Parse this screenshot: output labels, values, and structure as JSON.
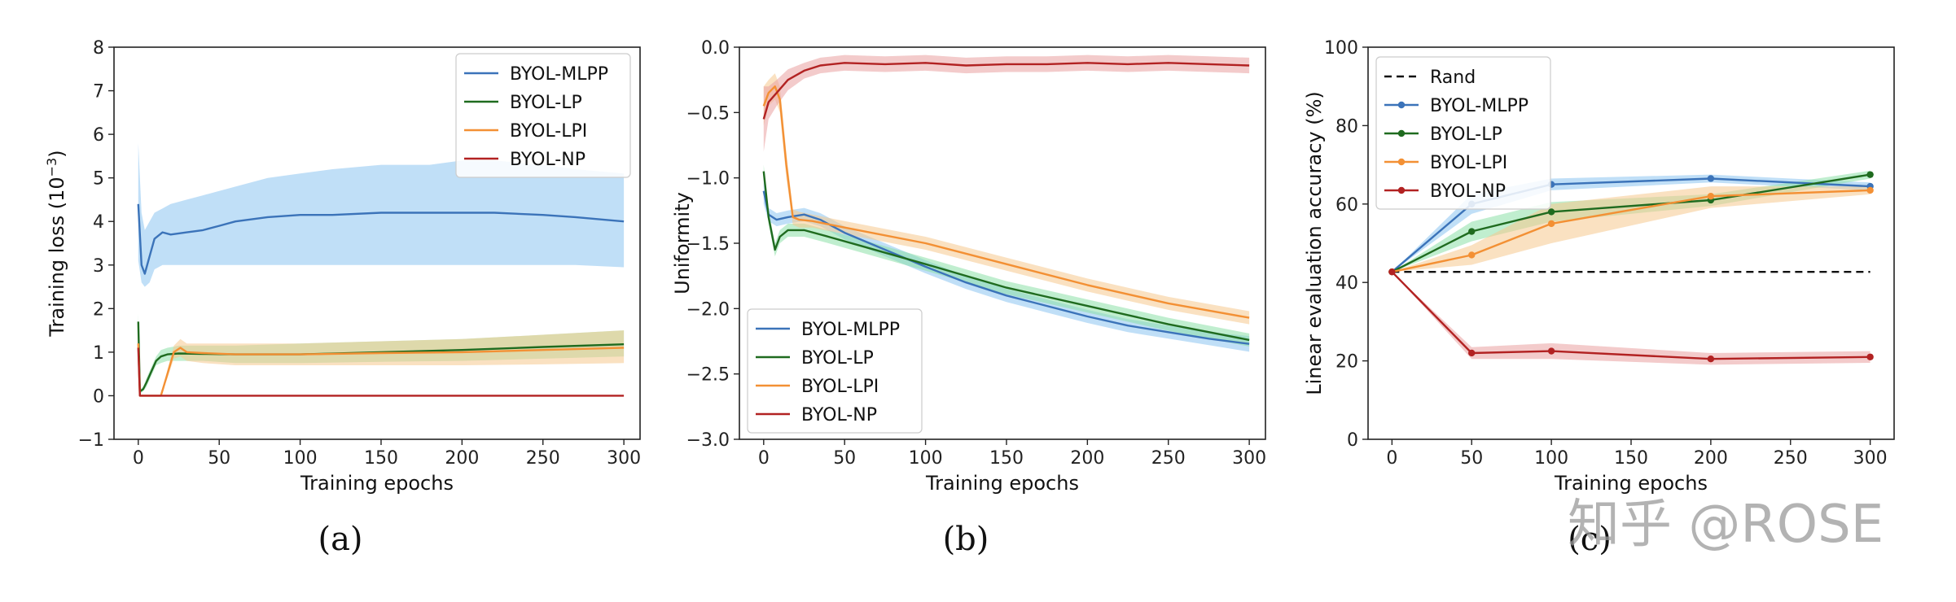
{
  "colors": {
    "mlpp": "#3b73b9",
    "lp": "#1f6b1f",
    "lpi": "#f39034",
    "np": "#b22222",
    "rand": "#111111",
    "band_mlpp": "#8cc4f0",
    "band_lp": "#8ce0a8",
    "band_lpi": "#f5c98e",
    "band_np": "#e9a0a0"
  },
  "captions": [
    "(a)",
    "(b)",
    "(c)"
  ],
  "watermark": "知乎 @ROSE",
  "chart_data": [
    {
      "id": "a",
      "type": "line",
      "caption": "(a)",
      "xlabel": "Training epochs",
      "ylabel_parts": [
        "Training loss (10",
        "−3",
        ")"
      ],
      "xlim": [
        -15,
        310
      ],
      "ylim": [
        -1,
        8
      ],
      "xticks": [
        0,
        50,
        100,
        150,
        200,
        250,
        300
      ],
      "yticks": [
        -1,
        0,
        1,
        2,
        3,
        4,
        5,
        6,
        7,
        8
      ],
      "ytick_labels": [
        "−1",
        "0",
        "1",
        "2",
        "3",
        "4",
        "5",
        "6",
        "7",
        "8"
      ],
      "legend_position": "top-right",
      "legend": [
        "BYOL-MLPP",
        "BYOL-LP",
        "BYOL-LPI",
        "BYOL-NP"
      ],
      "series": [
        {
          "name": "BYOL-MLPP",
          "color_key": "mlpp",
          "band_key": "band_mlpp",
          "x": [
            0,
            2,
            4,
            7,
            10,
            15,
            20,
            30,
            40,
            50,
            60,
            80,
            100,
            120,
            150,
            180,
            200,
            220,
            250,
            270,
            300
          ],
          "y": [
            4.4,
            3.0,
            2.8,
            3.2,
            3.6,
            3.75,
            3.7,
            3.75,
            3.8,
            3.9,
            4.0,
            4.1,
            4.15,
            4.15,
            4.2,
            4.2,
            4.2,
            4.2,
            4.15,
            4.1,
            4.0
          ],
          "lower": [
            3.1,
            2.6,
            2.5,
            2.6,
            2.9,
            3.0,
            3.0,
            3.0,
            3.0,
            3.0,
            3.0,
            3.0,
            3.0,
            3.0,
            3.0,
            3.0,
            3.0,
            3.0,
            3.0,
            3.0,
            2.95
          ],
          "upper": [
            5.8,
            4.2,
            3.8,
            4.0,
            4.2,
            4.3,
            4.4,
            4.5,
            4.6,
            4.7,
            4.8,
            5.0,
            5.1,
            5.2,
            5.3,
            5.3,
            5.4,
            5.4,
            5.3,
            5.2,
            5.1
          ]
        },
        {
          "name": "BYOL-LP",
          "color_key": "lp",
          "band_key": "band_lp",
          "x": [
            0,
            1,
            3,
            5,
            8,
            11,
            14,
            18,
            25,
            40,
            60,
            100,
            150,
            200,
            250,
            300
          ],
          "y": [
            1.7,
            0.1,
            0.15,
            0.3,
            0.55,
            0.8,
            0.9,
            0.95,
            0.97,
            0.96,
            0.95,
            0.95,
            1.0,
            1.05,
            1.12,
            1.18
          ],
          "lower": [
            1.5,
            0.05,
            0.1,
            0.2,
            0.45,
            0.7,
            0.75,
            0.8,
            0.8,
            0.8,
            0.75,
            0.75,
            0.78,
            0.8,
            0.85,
            0.9
          ],
          "upper": [
            1.9,
            0.15,
            0.2,
            0.4,
            0.65,
            0.9,
            1.05,
            1.1,
            1.15,
            1.15,
            1.15,
            1.2,
            1.25,
            1.3,
            1.4,
            1.5
          ]
        },
        {
          "name": "BYOL-LPI",
          "color_key": "lpi",
          "band_key": "band_lpi",
          "x": [
            0,
            1,
            5,
            10,
            14,
            18,
            22,
            26,
            30,
            40,
            60,
            100,
            150,
            200,
            250,
            300
          ],
          "y": [
            1.2,
            0.0,
            0.0,
            0.0,
            0.0,
            0.5,
            1.0,
            1.1,
            1.0,
            0.98,
            0.95,
            0.95,
            0.98,
            1.0,
            1.05,
            1.1
          ],
          "lower": [
            1.0,
            0.0,
            0.0,
            0.0,
            0.0,
            0.4,
            0.85,
            0.9,
            0.8,
            0.75,
            0.7,
            0.7,
            0.7,
            0.7,
            0.72,
            0.75
          ],
          "upper": [
            1.4,
            0.0,
            0.0,
            0.0,
            0.0,
            0.6,
            1.15,
            1.3,
            1.2,
            1.2,
            1.2,
            1.2,
            1.25,
            1.3,
            1.4,
            1.5
          ]
        },
        {
          "name": "BYOL-NP",
          "color_key": "np",
          "band_key": "band_np",
          "x": [
            0,
            1,
            300
          ],
          "y": [
            1.1,
            0.0,
            0.0
          ],
          "lower": [
            1.0,
            0.0,
            0.0
          ],
          "upper": [
            1.2,
            0.0,
            0.0
          ]
        }
      ]
    },
    {
      "id": "b",
      "type": "line",
      "caption": "(b)",
      "xlabel": "Training epochs",
      "ylabel": "Uniformity",
      "xlim": [
        -15,
        310
      ],
      "ylim": [
        -3.0,
        0.0
      ],
      "xticks": [
        0,
        50,
        100,
        150,
        200,
        250,
        300
      ],
      "yticks": [
        -3.0,
        -2.5,
        -2.0,
        -1.5,
        -1.0,
        -0.5,
        0.0
      ],
      "ytick_labels": [
        "−3.0",
        "−2.5",
        "−2.0",
        "−1.5",
        "−1.0",
        "−0.5",
        "0.0"
      ],
      "legend_position": "bottom-left",
      "legend": [
        "BYOL-MLPP",
        "BYOL-LP",
        "BYOL-LPI",
        "BYOL-NP"
      ],
      "series": [
        {
          "name": "BYOL-MLPP",
          "color_key": "mlpp",
          "band_key": "band_mlpp",
          "x": [
            0,
            3,
            8,
            15,
            25,
            35,
            50,
            75,
            100,
            125,
            150,
            175,
            200,
            225,
            250,
            275,
            300
          ],
          "y": [
            -1.1,
            -1.28,
            -1.32,
            -1.3,
            -1.28,
            -1.32,
            -1.42,
            -1.55,
            -1.68,
            -1.8,
            -1.9,
            -1.98,
            -2.06,
            -2.13,
            -2.18,
            -2.23,
            -2.27
          ],
          "lower": [
            -1.2,
            -1.33,
            -1.37,
            -1.35,
            -1.33,
            -1.37,
            -1.47,
            -1.6,
            -1.73,
            -1.85,
            -1.95,
            -2.03,
            -2.11,
            -2.18,
            -2.23,
            -2.28,
            -2.33
          ],
          "upper": [
            -1.0,
            -1.23,
            -1.27,
            -1.25,
            -1.23,
            -1.27,
            -1.37,
            -1.5,
            -1.63,
            -1.75,
            -1.85,
            -1.93,
            -2.01,
            -2.08,
            -2.13,
            -2.18,
            -2.21
          ]
        },
        {
          "name": "BYOL-LP",
          "color_key": "lp",
          "band_key": "band_lp",
          "x": [
            0,
            3,
            7,
            10,
            15,
            25,
            40,
            60,
            100,
            150,
            200,
            250,
            300
          ],
          "y": [
            -0.95,
            -1.3,
            -1.55,
            -1.45,
            -1.4,
            -1.4,
            -1.45,
            -1.52,
            -1.66,
            -1.84,
            -1.98,
            -2.12,
            -2.24
          ],
          "lower": [
            -1.0,
            -1.35,
            -1.6,
            -1.5,
            -1.45,
            -1.45,
            -1.5,
            -1.57,
            -1.71,
            -1.89,
            -2.03,
            -2.17,
            -2.29
          ],
          "upper": [
            -0.9,
            -1.25,
            -1.5,
            -1.4,
            -1.35,
            -1.35,
            -1.4,
            -1.47,
            -1.61,
            -1.79,
            -1.93,
            -2.07,
            -2.19
          ]
        },
        {
          "name": "BYOL-LPI",
          "color_key": "lpi",
          "band_key": "band_lpi",
          "x": [
            0,
            3,
            7,
            10,
            14,
            18,
            22,
            30,
            50,
            100,
            150,
            200,
            250,
            300
          ],
          "y": [
            -0.45,
            -0.35,
            -0.3,
            -0.4,
            -0.9,
            -1.3,
            -1.32,
            -1.33,
            -1.38,
            -1.5,
            -1.66,
            -1.82,
            -1.96,
            -2.07
          ],
          "lower": [
            -0.6,
            -0.45,
            -0.4,
            -0.5,
            -1.0,
            -1.36,
            -1.38,
            -1.38,
            -1.43,
            -1.55,
            -1.71,
            -1.87,
            -2.01,
            -2.12
          ],
          "upper": [
            -0.3,
            -0.25,
            -0.2,
            -0.3,
            -0.8,
            -1.24,
            -1.26,
            -1.28,
            -1.33,
            -1.45,
            -1.61,
            -1.77,
            -1.91,
            -2.02
          ]
        },
        {
          "name": "BYOL-NP",
          "color_key": "np",
          "band_key": "band_np",
          "x": [
            0,
            3,
            8,
            15,
            25,
            35,
            50,
            75,
            100,
            125,
            150,
            175,
            200,
            225,
            250,
            275,
            300
          ],
          "y": [
            -0.55,
            -0.42,
            -0.35,
            -0.25,
            -0.18,
            -0.14,
            -0.12,
            -0.13,
            -0.12,
            -0.14,
            -0.13,
            -0.13,
            -0.12,
            -0.13,
            -0.12,
            -0.13,
            -0.14
          ],
          "lower": [
            -0.8,
            -0.55,
            -0.45,
            -0.33,
            -0.24,
            -0.2,
            -0.18,
            -0.19,
            -0.18,
            -0.2,
            -0.19,
            -0.19,
            -0.18,
            -0.19,
            -0.18,
            -0.19,
            -0.2
          ],
          "upper": [
            -0.3,
            -0.3,
            -0.25,
            -0.17,
            -0.12,
            -0.08,
            -0.06,
            -0.07,
            -0.06,
            -0.08,
            -0.07,
            -0.07,
            -0.06,
            -0.07,
            -0.06,
            -0.07,
            -0.08
          ]
        }
      ]
    },
    {
      "id": "c",
      "type": "line",
      "caption": "(c)",
      "xlabel": "Training epochs",
      "ylabel": "Linear evaluation accuracy (%)",
      "xlim": [
        -15,
        315
      ],
      "ylim": [
        0,
        100
      ],
      "xticks": [
        0,
        50,
        100,
        150,
        200,
        250,
        300
      ],
      "yticks": [
        0,
        20,
        40,
        60,
        80,
        100
      ],
      "ytick_labels": [
        "0",
        "20",
        "40",
        "60",
        "80",
        "100"
      ],
      "legend_position": "top-left",
      "legend": [
        "Rand",
        "BYOL-MLPP",
        "BYOL-LP",
        "BYOL-LPI",
        "BYOL-NP"
      ],
      "reference": {
        "name": "Rand",
        "y": 42.7,
        "x": [
          0,
          300
        ]
      },
      "series": [
        {
          "name": "BYOL-MLPP",
          "color_key": "mlpp",
          "band_key": "band_mlpp",
          "x": [
            0,
            50,
            100,
            200,
            300
          ],
          "y": [
            42.7,
            60.0,
            65.0,
            66.5,
            64.5
          ],
          "lower": [
            42.7,
            57.5,
            63.5,
            65.5,
            63.5
          ],
          "upper": [
            42.7,
            62.5,
            66.5,
            67.5,
            65.5
          ]
        },
        {
          "name": "BYOL-LP",
          "color_key": "lp",
          "band_key": "band_lp",
          "x": [
            0,
            50,
            100,
            200,
            300
          ],
          "y": [
            42.7,
            53.0,
            58.0,
            61.0,
            67.5
          ],
          "lower": [
            42.7,
            50.5,
            55.5,
            59.5,
            66.5
          ],
          "upper": [
            42.7,
            55.5,
            60.5,
            62.5,
            68.5
          ]
        },
        {
          "name": "BYOL-LPI",
          "color_key": "lpi",
          "band_key": "band_lpi",
          "x": [
            0,
            50,
            100,
            200,
            300
          ],
          "y": [
            42.7,
            47.0,
            55.0,
            62.0,
            63.5
          ],
          "lower": [
            42.7,
            44.5,
            50.0,
            59.0,
            62.5
          ],
          "upper": [
            42.7,
            49.5,
            60.0,
            64.5,
            64.5
          ]
        },
        {
          "name": "BYOL-NP",
          "color_key": "np",
          "band_key": "band_np",
          "x": [
            0,
            50,
            100,
            200,
            300
          ],
          "y": [
            42.7,
            22.0,
            22.5,
            20.5,
            21.0
          ],
          "lower": [
            42.7,
            20.5,
            20.5,
            19.0,
            19.5
          ],
          "upper": [
            42.7,
            23.5,
            24.5,
            22.0,
            22.5
          ]
        }
      ]
    }
  ]
}
